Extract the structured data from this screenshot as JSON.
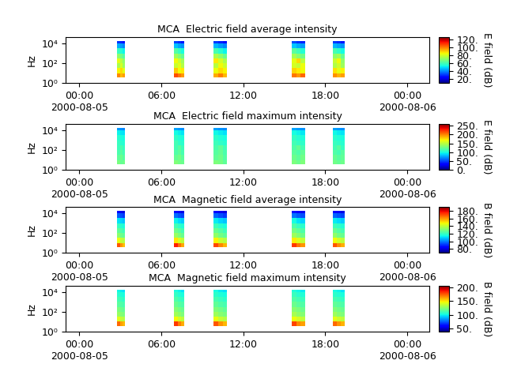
{
  "chart_data": [
    {
      "type": "heatmap",
      "title": "MCA  Electric field average intensity",
      "y_label": "Hz",
      "log": "y",
      "xlim": [
        -1,
        25.6
      ],
      "xticks": [
        {
          "value": 0,
          "label": "00:00\n2000-08-05"
        },
        {
          "value": 6,
          "label": "06:00"
        },
        {
          "value": 12,
          "label": "12:00"
        },
        {
          "value": 18,
          "label": "18:00"
        },
        {
          "value": 24,
          "label": "00:00\n2000-08-06"
        }
      ],
      "ylim": [
        1,
        44000
      ],
      "yticks": [
        {
          "value": 1,
          "label": "10⁰"
        },
        {
          "value": 100,
          "label": "10²"
        },
        {
          "value": 10000,
          "label": "10⁴"
        }
      ],
      "time_edges": [
        2.77,
        2.96,
        3.16,
        3.35,
        6.94,
        7.19,
        7.44,
        7.69,
        9.83,
        10.16,
        10.48,
        10.81,
        15.55,
        15.88,
        16.2,
        16.53,
        18.55,
        18.84,
        19.13,
        19.42
      ],
      "freq_edges": [
        3.6,
        10,
        31.6,
        100,
        316,
        1000,
        3160,
        10000,
        18000
      ],
      "cells": [
        [
          98,
          92,
          95,
          null,
          105,
          100,
          96,
          null,
          94,
          99,
          92,
          null,
          100,
          96,
          102,
          null,
          97,
          93,
          95
        ],
        [
          85,
          88,
          82,
          null,
          90,
          84,
          86,
          null,
          83,
          88,
          85,
          null,
          89,
          86,
          84,
          null,
          87,
          82,
          85
        ],
        [
          74,
          80,
          72,
          null,
          78,
          82,
          75,
          null,
          76,
          84,
          79,
          null,
          80,
          77,
          83,
          null,
          75,
          79,
          72
        ],
        [
          82,
          76,
          70,
          null,
          84,
          78,
          72,
          null,
          86,
          80,
          74,
          null,
          82,
          88,
          76,
          null,
          78,
          84,
          70
        ],
        [
          70,
          66,
          62,
          null,
          72,
          68,
          64,
          null,
          74,
          70,
          65,
          null,
          73,
          69,
          66,
          null,
          70,
          72,
          64
        ],
        [
          58,
          55,
          52,
          null,
          62,
          58,
          54,
          null,
          60,
          56,
          52,
          null,
          63,
          59,
          55,
          null,
          60,
          57,
          53
        ],
        [
          44,
          42,
          40,
          null,
          46,
          43,
          41,
          null,
          45,
          42,
          40,
          null,
          47,
          44,
          42,
          null,
          45,
          43,
          41
        ],
        [
          30,
          28,
          26,
          null,
          32,
          29,
          27,
          null,
          31,
          28,
          26,
          null,
          33,
          30,
          28,
          null,
          31,
          29,
          27
        ]
      ],
      "colorbar": {
        "label": "E field (dB)",
        "range": [
          10,
          125
        ],
        "ticks": [
          {
            "value": 20,
            "label": "20."
          },
          {
            "value": 40,
            "label": "40."
          },
          {
            "value": 60,
            "label": "60."
          },
          {
            "value": 80,
            "label": "80."
          },
          {
            "value": 100,
            "label": "100."
          },
          {
            "value": 120,
            "label": "120."
          }
        ]
      }
    },
    {
      "type": "heatmap",
      "title": "MCA  Electric field maximum intensity",
      "y_label": "Hz",
      "log": "y",
      "xlim": [
        -1,
        25.6
      ],
      "xticks": [
        {
          "value": 0,
          "label": "00:00\n2000-08-05"
        },
        {
          "value": 6,
          "label": "06:00"
        },
        {
          "value": 12,
          "label": "12:00"
        },
        {
          "value": 18,
          "label": "18:00"
        },
        {
          "value": 24,
          "label": "00:00\n2000-08-06"
        }
      ],
      "ylim": [
        1,
        44000
      ],
      "yticks": [
        {
          "value": 1,
          "label": "10⁰"
        },
        {
          "value": 100,
          "label": "10²"
        },
        {
          "value": 10000,
          "label": "10⁴"
        }
      ],
      "time_edges": [
        2.77,
        2.96,
        3.16,
        3.35,
        6.94,
        7.19,
        7.44,
        7.69,
        9.83,
        10.16,
        10.48,
        10.81,
        15.55,
        15.88,
        16.2,
        16.53,
        18.55,
        18.84,
        19.13,
        19.42
      ],
      "freq_edges": [
        3.6,
        10,
        31.6,
        100,
        316,
        1000,
        3160,
        10000,
        18000
      ],
      "cells": [
        [
          128,
          122,
          125,
          null,
          132,
          126,
          124,
          null,
          130,
          127,
          121,
          null,
          129,
          124,
          131,
          null,
          126,
          122,
          125
        ],
        [
          120,
          124,
          118,
          null,
          122,
          126,
          119,
          null,
          121,
          125,
          117,
          null,
          124,
          120,
          126,
          null,
          122,
          118,
          121
        ],
        [
          114,
          118,
          112,
          null,
          116,
          120,
          113,
          null,
          118,
          122,
          114,
          null,
          119,
          115,
          121,
          null,
          116,
          112,
          118
        ],
        [
          110,
          114,
          108,
          null,
          112,
          118,
          110,
          null,
          114,
          120,
          111,
          null,
          116,
          122,
          112,
          null,
          112,
          118,
          108
        ],
        [
          108,
          104,
          102,
          null,
          112,
          106,
          104,
          null,
          110,
          106,
          103,
          null,
          112,
          108,
          105,
          null,
          109,
          106,
          103
        ],
        [
          104,
          100,
          98,
          null,
          106,
          102,
          100,
          null,
          105,
          101,
          98,
          null,
          107,
          103,
          100,
          null,
          104,
          101,
          99
        ],
        [
          95,
          92,
          90,
          null,
          97,
          94,
          91,
          null,
          96,
          93,
          90,
          null,
          98,
          95,
          92,
          null,
          96,
          93,
          91
        ],
        [
          72,
          70,
          68,
          null,
          75,
          72,
          70,
          null,
          74,
          71,
          69,
          null,
          76,
          73,
          71,
          null,
          74,
          72,
          70
        ]
      ],
      "colorbar": {
        "label": "E field (dB)",
        "range": [
          0,
          260
        ],
        "ticks": [
          {
            "value": 0,
            "label": "0."
          },
          {
            "value": 50,
            "label": "50."
          },
          {
            "value": 100,
            "label": "100."
          },
          {
            "value": 150,
            "label": "150."
          },
          {
            "value": 200,
            "label": "200."
          },
          {
            "value": 250,
            "label": "250."
          }
        ]
      }
    },
    {
      "type": "heatmap",
      "title": "MCA  Magnetic field average intensity",
      "y_label": "Hz",
      "log": "y",
      "xlim": [
        -1,
        25.6
      ],
      "xticks": [
        {
          "value": 0,
          "label": "00:00\n2000-08-05"
        },
        {
          "value": 6,
          "label": "06:00"
        },
        {
          "value": 12,
          "label": "12:00"
        },
        {
          "value": 18,
          "label": "18:00"
        },
        {
          "value": 24,
          "label": "00:00\n2000-08-06"
        }
      ],
      "ylim": [
        1,
        44000
      ],
      "yticks": [
        {
          "value": 1,
          "label": "10⁰"
        },
        {
          "value": 100,
          "label": "10²"
        },
        {
          "value": 10000,
          "label": "10⁴"
        }
      ],
      "time_edges": [
        2.77,
        2.96,
        3.16,
        3.35,
        6.94,
        7.19,
        7.44,
        7.69,
        9.83,
        10.16,
        10.48,
        10.81,
        15.55,
        15.88,
        16.2,
        16.53,
        18.55,
        18.84,
        19.13,
        19.42
      ],
      "freq_edges": [
        3.6,
        10,
        31.6,
        100,
        316,
        1000,
        3160,
        10000,
        18000
      ],
      "cells": [
        [
          168,
          160,
          155,
          null,
          175,
          165,
          158,
          null,
          170,
          162,
          156,
          null,
          172,
          164,
          160,
          null,
          168,
          161,
          157
        ],
        [
          146,
          140,
          138,
          null,
          150,
          143,
          139,
          null,
          148,
          141,
          138,
          null,
          149,
          144,
          140,
          null,
          147,
          142,
          139
        ],
        [
          132,
          128,
          126,
          null,
          134,
          130,
          127,
          null,
          133,
          129,
          126,
          null,
          135,
          131,
          128,
          null,
          133,
          129,
          127
        ],
        [
          126,
          123,
          121,
          null,
          128,
          125,
          122,
          null,
          127,
          124,
          121,
          null,
          129,
          126,
          123,
          null,
          127,
          124,
          122
        ],
        [
          120,
          118,
          116,
          null,
          122,
          119,
          117,
          null,
          121,
          118,
          116,
          null,
          123,
          120,
          118,
          null,
          121,
          119,
          117
        ],
        [
          112,
          110,
          108,
          null,
          114,
          111,
          109,
          null,
          113,
          110,
          108,
          null,
          115,
          112,
          110,
          null,
          113,
          111,
          109
        ],
        [
          96,
          94,
          92,
          null,
          98,
          95,
          93,
          null,
          97,
          94,
          92,
          null,
          99,
          96,
          94,
          null,
          97,
          95,
          93
        ],
        [
          84,
          82,
          80,
          null,
          86,
          83,
          81,
          null,
          85,
          82,
          80,
          null,
          87,
          84,
          82,
          null,
          85,
          83,
          81
        ]
      ],
      "colorbar": {
        "label": "B field (dB)",
        "range": [
          70,
          190
        ],
        "ticks": [
          {
            "value": 80,
            "label": "80."
          },
          {
            "value": 100,
            "label": "100."
          },
          {
            "value": 120,
            "label": "120."
          },
          {
            "value": 140,
            "label": "140."
          },
          {
            "value": 160,
            "label": "160."
          },
          {
            "value": 180,
            "label": "180."
          }
        ]
      }
    },
    {
      "type": "heatmap",
      "title": "MCA  Magnetic field maximum intensity",
      "y_label": "Hz",
      "log": "y",
      "xlim": [
        -1,
        25.6
      ],
      "xticks": [
        {
          "value": 0,
          "label": "00:00\n2000-08-05"
        },
        {
          "value": 6,
          "label": "06:00"
        },
        {
          "value": 12,
          "label": "12:00"
        },
        {
          "value": 18,
          "label": "18:00"
        },
        {
          "value": 24,
          "label": "00:00\n2000-08-06"
        }
      ],
      "ylim": [
        1,
        44000
      ],
      "yticks": [
        {
          "value": 1,
          "label": "10⁰"
        },
        {
          "value": 100,
          "label": "10²"
        },
        {
          "value": 10000,
          "label": "10⁴"
        }
      ],
      "time_edges": [
        2.77,
        2.96,
        3.16,
        3.35,
        6.94,
        7.19,
        7.44,
        7.69,
        9.83,
        10.16,
        10.48,
        10.81,
        15.55,
        15.88,
        16.2,
        16.53,
        18.55,
        18.84,
        19.13,
        19.42
      ],
      "freq_edges": [
        3.6,
        10,
        31.6,
        100,
        316,
        1000,
        3160,
        10000,
        18000
      ],
      "cells": [
        [
          172,
          162,
          158,
          null,
          180,
          168,
          160,
          null,
          175,
          165,
          158,
          null,
          178,
          166,
          162,
          null,
          172,
          164,
          159
        ],
        [
          142,
          136,
          134,
          null,
          146,
          139,
          135,
          null,
          144,
          137,
          134,
          null,
          145,
          140,
          136,
          null,
          143,
          138,
          135
        ],
        [
          128,
          124,
          122,
          null,
          130,
          126,
          123,
          null,
          129,
          125,
          122,
          null,
          131,
          127,
          124,
          null,
          129,
          125,
          123
        ],
        [
          122,
          119,
          117,
          null,
          124,
          121,
          118,
          null,
          123,
          120,
          117,
          null,
          125,
          122,
          119,
          null,
          123,
          120,
          118
        ],
        [
          116,
          114,
          112,
          null,
          118,
          115,
          113,
          null,
          117,
          114,
          112,
          null,
          119,
          116,
          114,
          null,
          117,
          115,
          113
        ],
        [
          111,
          109,
          107,
          null,
          113,
          110,
          108,
          null,
          112,
          109,
          107,
          null,
          114,
          111,
          109,
          null,
          112,
          110,
          108
        ],
        [
          106,
          104,
          102,
          null,
          108,
          105,
          103,
          null,
          107,
          104,
          102,
          null,
          109,
          106,
          104,
          null,
          107,
          105,
          103
        ],
        [
          101,
          99,
          97,
          null,
          103,
          100,
          98,
          null,
          102,
          99,
          97,
          null,
          104,
          101,
          99,
          null,
          102,
          100,
          98
        ]
      ],
      "colorbar": {
        "label": "B field (dB)",
        "range": [
          40,
          205
        ],
        "ticks": [
          {
            "value": 50,
            "label": "50."
          },
          {
            "value": 100,
            "label": "100."
          },
          {
            "value": 150,
            "label": "150."
          },
          {
            "value": 200,
            "label": "200."
          }
        ]
      }
    }
  ]
}
